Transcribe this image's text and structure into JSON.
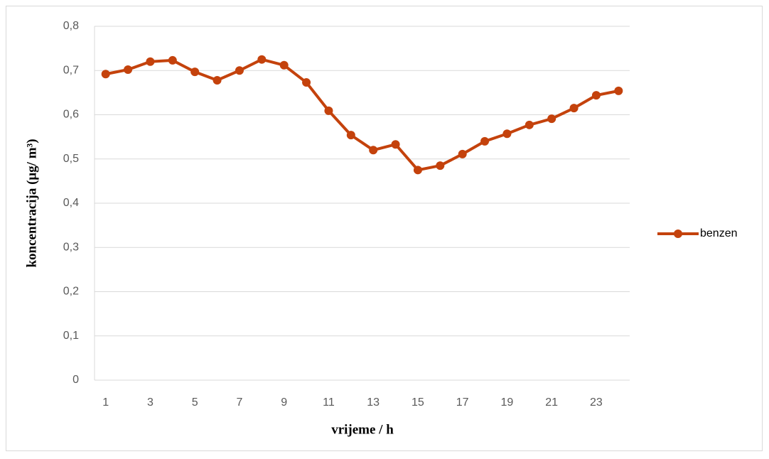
{
  "chart_data": {
    "type": "line",
    "x_label": "vrijeme / h",
    "y_label": "koncentracija (μg/ m³)",
    "x": [
      1,
      2,
      3,
      4,
      5,
      6,
      7,
      8,
      9,
      10,
      11,
      12,
      13,
      14,
      15,
      16,
      17,
      18,
      19,
      20,
      21,
      22,
      23,
      24
    ],
    "xlim": [
      0.5,
      24.5
    ],
    "xticks": [
      1,
      3,
      5,
      7,
      9,
      11,
      13,
      15,
      17,
      19,
      21,
      23
    ],
    "ylim": [
      0,
      0.8
    ],
    "yticks": [
      0,
      {
        "value": 0.1,
        "label": "0,1"
      },
      {
        "value": 0.2,
        "label": "0,2"
      },
      {
        "value": 0.3,
        "label": "0,3"
      },
      {
        "value": 0.4,
        "label": "0,4"
      },
      {
        "value": 0.5,
        "label": "0,5"
      },
      {
        "value": 0.6,
        "label": "0,6"
      },
      {
        "value": 0.7,
        "label": "0,7"
      },
      {
        "value": 0.8,
        "label": "0,8"
      }
    ],
    "grid": true,
    "legend": "right",
    "series": [
      {
        "name": "benzen",
        "color": "#c4420c",
        "values": [
          0.692,
          0.702,
          0.72,
          0.723,
          0.697,
          0.678,
          0.7,
          0.725,
          0.712,
          0.673,
          0.609,
          0.554,
          0.52,
          0.533,
          0.475,
          0.485,
          0.511,
          0.54,
          0.557,
          0.577,
          0.591,
          0.615,
          0.644,
          0.654
        ]
      }
    ]
  }
}
